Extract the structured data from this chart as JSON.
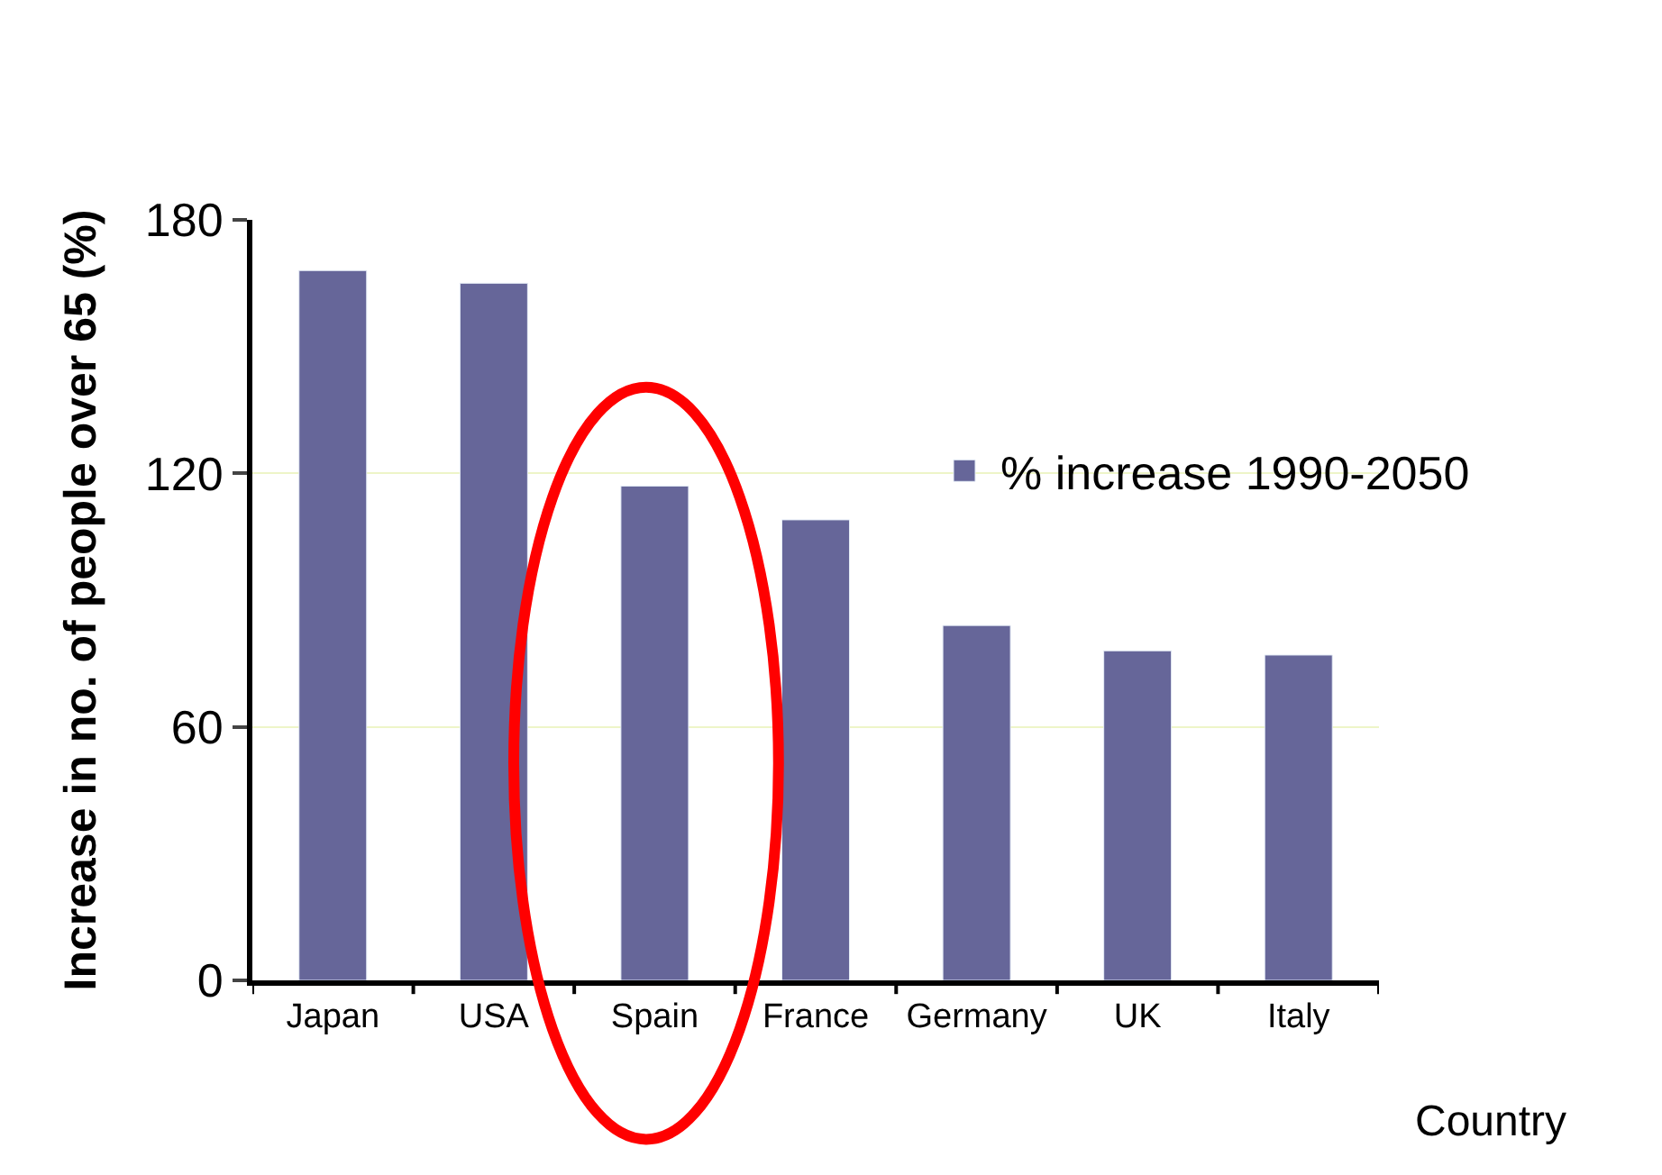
{
  "chart_data": {
    "type": "bar",
    "xlabel": "Country",
    "ylabel": "Increase in no. of people over 65 (%)",
    "categories": [
      "Japan",
      "USA",
      "Spain",
      "France",
      "Germany",
      "UK",
      "Italy"
    ],
    "series": [
      {
        "name": "% increase 1990-2050",
        "color": "#666699",
        "values": [
          168,
          165,
          117,
          109,
          84,
          78,
          77
        ]
      }
    ],
    "ylim": [
      0,
      180
    ],
    "yticks": [
      0,
      60,
      120,
      180
    ],
    "grid": "y",
    "legend": "right"
  }
}
